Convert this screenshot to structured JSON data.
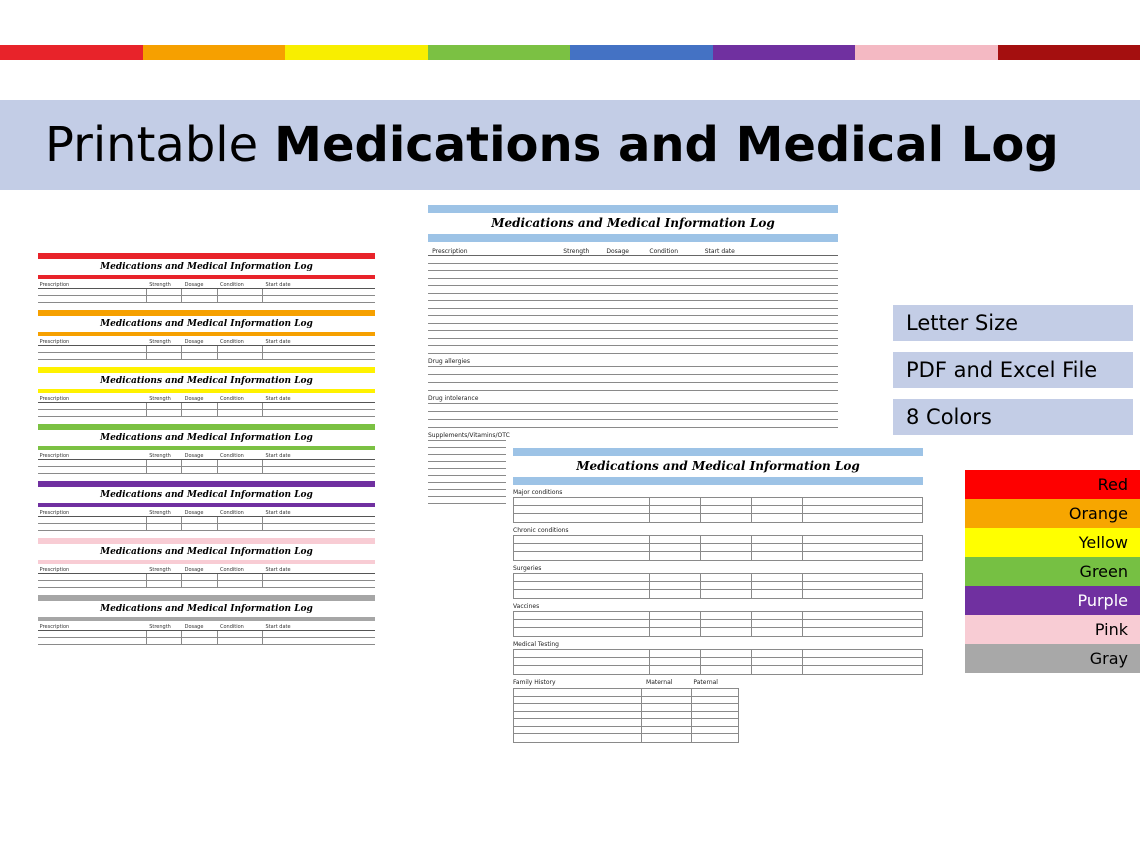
{
  "header": {
    "title_regular": "Printable",
    "title_bold": "Medications and Medical Log"
  },
  "palette": {
    "band_blue": "#c3cde6",
    "accent_blue": "#9dc3e6"
  },
  "top_stripe": {
    "colors": [
      "#e8232a",
      "#f6a000",
      "#f8ee00",
      "#7bc143",
      "#4472c4",
      "#7030a0",
      "#f4b9c3",
      "#a40f0f"
    ]
  },
  "common": {
    "sheet_title": "Medications and Medical Information Log",
    "columns": [
      "Prescription",
      "Strength",
      "Dosage",
      "Condition",
      "Start date"
    ]
  },
  "mini_sheets": [
    {
      "name": "red",
      "hex": "#e8232a"
    },
    {
      "name": "orange",
      "hex": "#f6a000"
    },
    {
      "name": "yellow",
      "hex": "#fff200"
    },
    {
      "name": "green",
      "hex": "#7bc143"
    },
    {
      "name": "purple",
      "hex": "#7030a0"
    },
    {
      "name": "pink",
      "hex": "#f8ccd4"
    },
    {
      "name": "gray",
      "hex": "#a6a6a6"
    }
  ],
  "page1": {
    "sections": [
      "Drug allergies",
      "Drug intolerance",
      "Supplements/Vitamins/OTC"
    ]
  },
  "page2": {
    "sections": [
      "Major conditions",
      "Chronic conditions",
      "Surgeries",
      "Vaccines",
      "Medical Testing"
    ],
    "family_history": {
      "label": "Family History",
      "maternal": "Maternal",
      "paternal": "Paternal"
    }
  },
  "features": [
    {
      "label": "Letter Size"
    },
    {
      "label": "PDF and Excel File"
    },
    {
      "label": "8 Colors"
    }
  ],
  "legend": [
    {
      "label": "Red",
      "hex": "#fe0000",
      "text_color": "#000000"
    },
    {
      "label": "Orange",
      "hex": "#f7a600",
      "text_color": "#000000"
    },
    {
      "label": "Yellow",
      "hex": "#ffff00",
      "text_color": "#000000"
    },
    {
      "label": "Green",
      "hex": "#76c043",
      "text_color": "#000000"
    },
    {
      "label": "Purple",
      "hex": "#7030a0",
      "text_color": "#ffffff"
    },
    {
      "label": "Pink",
      "hex": "#f8ccd4",
      "text_color": "#000000"
    },
    {
      "label": "Gray",
      "hex": "#a8a8a8",
      "text_color": "#000000"
    }
  ]
}
